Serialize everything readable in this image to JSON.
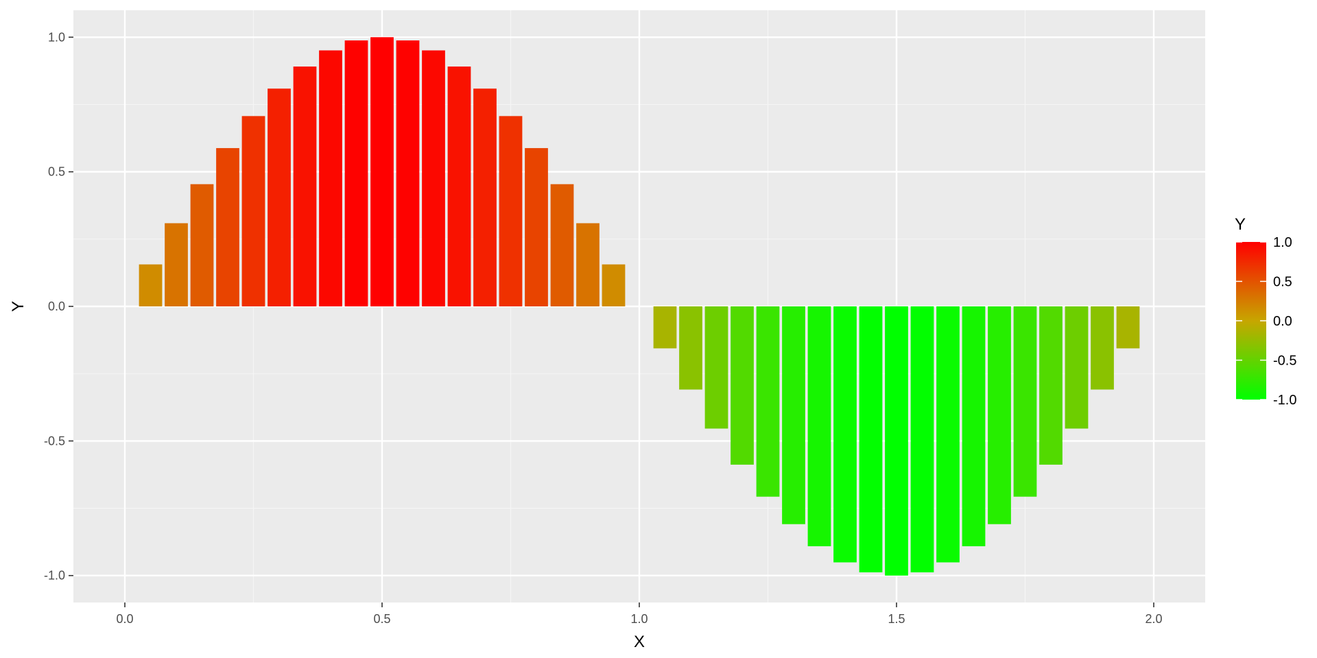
{
  "chart_data": {
    "type": "bar",
    "xlabel": "X",
    "ylabel": "Y",
    "xlim": [
      -0.1,
      2.1
    ],
    "ylim": [
      -1.1,
      1.1
    ],
    "x_ticks": [
      "0.0",
      "0.5",
      "1.0",
      "1.5",
      "2.0"
    ],
    "x_tick_values": [
      0,
      0.5,
      1.0,
      1.5,
      2.0
    ],
    "y_ticks": [
      "-1.0",
      "-0.5",
      "0.0",
      "0.5",
      "1.0"
    ],
    "y_tick_values": [
      -1.0,
      -0.5,
      0,
      0.5,
      1.0
    ],
    "grid": true,
    "x": [
      0.05,
      0.1,
      0.15,
      0.2,
      0.25,
      0.3,
      0.35,
      0.4,
      0.45,
      0.5,
      0.55,
      0.6,
      0.65,
      0.7,
      0.75,
      0.8,
      0.85,
      0.9,
      0.95,
      1.05,
      1.1,
      1.15,
      1.2,
      1.25,
      1.3,
      1.35,
      1.4,
      1.45,
      1.5,
      1.55,
      1.6,
      1.65,
      1.7,
      1.75,
      1.8,
      1.85,
      1.9,
      1.95
    ],
    "values": [
      0.156,
      0.309,
      0.454,
      0.588,
      0.707,
      0.809,
      0.891,
      0.951,
      0.988,
      1.0,
      0.988,
      0.951,
      0.891,
      0.809,
      0.707,
      0.588,
      0.454,
      0.309,
      0.156,
      -0.156,
      -0.309,
      -0.454,
      -0.588,
      -0.707,
      -0.809,
      -0.891,
      -0.951,
      -0.988,
      -1.0,
      -0.988,
      -0.951,
      -0.891,
      -0.809,
      -0.707,
      -0.588,
      -0.454,
      -0.309,
      -0.156
    ],
    "bar_width": 0.045,
    "legend": {
      "title": "Y",
      "position": "right",
      "labels": [
        "1.0",
        "0.5",
        "0.0",
        "-0.5",
        "-1.0"
      ],
      "label_values": [
        1.0,
        0.5,
        0.0,
        -0.5,
        -1.0
      ],
      "range": [
        -1.0,
        1.0
      ],
      "color_low": "#00ff00",
      "color_high": "#ff0000"
    }
  },
  "colors": {
    "panel_background": "#ebebeb",
    "grid_major": "#ffffff",
    "grid_minor": "#f5f5f5",
    "tick_text": "#4d4d4d"
  }
}
